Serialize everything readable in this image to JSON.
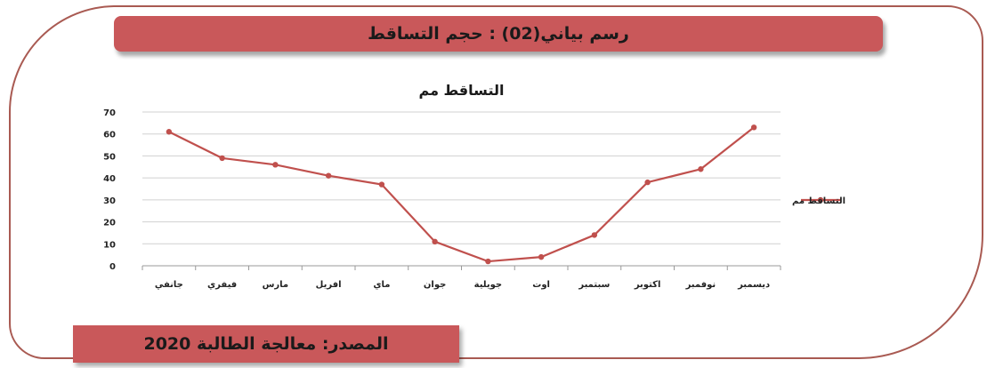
{
  "header": {
    "title": "رسم بياني(02) : حجم التساقط"
  },
  "footer": {
    "source": "المصدر: معالجة الطالبة 2020"
  },
  "colors": {
    "banner": "#c9585a",
    "series": "#c0504d",
    "frame": "#a95a52"
  },
  "chart_data": {
    "type": "line",
    "title": "التساقط مم",
    "xlabel": "",
    "ylabel": "",
    "ylim": [
      0,
      70
    ],
    "yticks": [
      0,
      10,
      20,
      30,
      40,
      50,
      60,
      70
    ],
    "grid": true,
    "legend_position": "right",
    "categories": [
      "جانفي",
      "فيفري",
      "مارس",
      "افريل",
      "ماي",
      "جوان",
      "جويلية",
      "اوت",
      "سبتمبر",
      "اكتوبر",
      "نوفمبر",
      "ديسمبر"
    ],
    "series": [
      {
        "name": "التساقط مم",
        "values": [
          61,
          49,
          46,
          41,
          37,
          11,
          2,
          4,
          14,
          38,
          44,
          63
        ]
      }
    ]
  }
}
